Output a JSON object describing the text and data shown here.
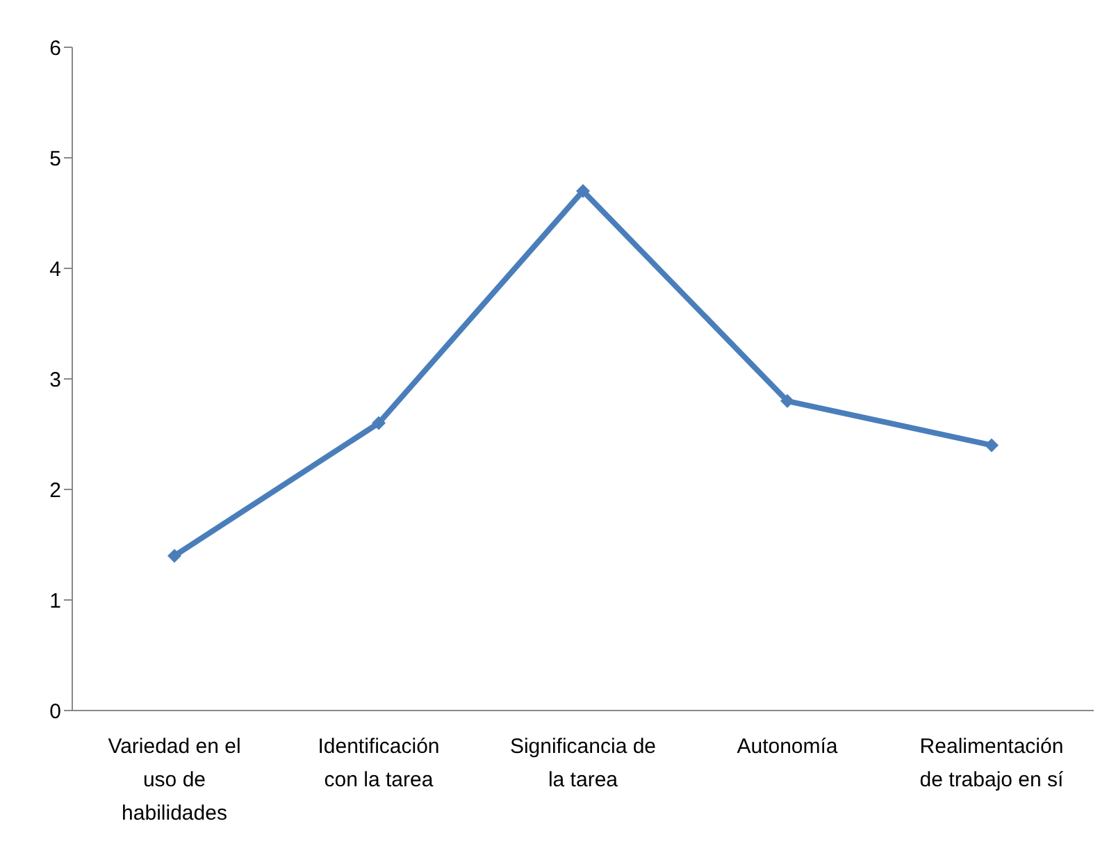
{
  "chart_data": {
    "type": "line",
    "categories": [
      "Variedad en el uso de habilidades",
      "Identificación con la tarea",
      "Significancia de la tarea",
      "Autonomía",
      "Realimentación de trabajo en sí"
    ],
    "series": [
      {
        "color": "#4a7ebb",
        "values": [
          1.4,
          2.6,
          4.7,
          2.8,
          2.4
        ]
      }
    ],
    "ylim": [
      0,
      6
    ],
    "yticks": [
      0,
      1,
      2,
      3,
      4,
      5,
      6
    ],
    "marker": "diamond",
    "line_style": "solid"
  }
}
